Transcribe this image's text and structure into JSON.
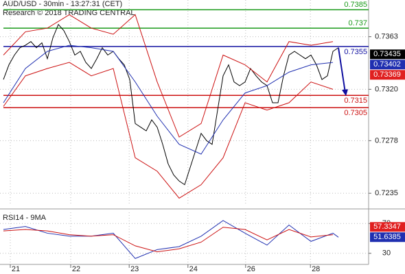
{
  "chart_data": [
    {
      "type": "line",
      "title": "AUD/USD - 30min - 13:27:31 (CET)",
      "subtitle": "Research © 2018 TRADING CENTRAL",
      "xlim": [
        0,
        66.5
      ],
      "ylim": [
        0.7225,
        0.7393
      ],
      "yticks": [
        0.7363,
        {
          "value": 0.732,
          "label": "0.7320"
        },
        0.7278,
        0.7235
      ],
      "grid": true,
      "series": [
        {
          "color": "#000000",
          "x": [
            0,
            1,
            2,
            3,
            4,
            5,
            6,
            7,
            8,
            9,
            10,
            11,
            12,
            13,
            14,
            15,
            16,
            17,
            18,
            19,
            20,
            21,
            22,
            23,
            24,
            25,
            26,
            27,
            28,
            29,
            30,
            31,
            32,
            33,
            34,
            35,
            36,
            37,
            38,
            39,
            40,
            41,
            42,
            43,
            44,
            45,
            46,
            47,
            48,
            49,
            50,
            51,
            52,
            53,
            54,
            55,
            56,
            57,
            58,
            59,
            60,
            61
          ],
          "values": [
            0.7328,
            0.734,
            0.7348,
            0.7354,
            0.7356,
            0.7359,
            0.7354,
            0.7358,
            0.7345,
            0.7362,
            0.7373,
            0.7368,
            0.7359,
            0.7348,
            0.7351,
            0.7342,
            0.7337,
            0.7345,
            0.7354,
            0.7348,
            0.7351,
            0.7345,
            0.734,
            0.7328,
            0.7292,
            0.7289,
            0.7286,
            0.7295,
            0.7289,
            0.7275,
            0.7259,
            0.725,
            0.7245,
            0.7242,
            0.7256,
            0.727,
            0.7284,
            0.7278,
            0.7275,
            0.7303,
            0.7331,
            0.734,
            0.7326,
            0.7323,
            0.7326,
            0.7337,
            0.7331,
            0.7326,
            0.7323,
            0.7309,
            0.7309,
            0.7331,
            0.7348,
            0.7351,
            0.7348,
            0.7345,
            0.7348,
            0.734,
            0.7328,
            0.7331,
            0.7351,
            0.7354
          ]
        },
        {
          "color": "#1f2fb0",
          "x": [
            0,
            4,
            8,
            12,
            16,
            20,
            24,
            28,
            32,
            36,
            40,
            44,
            48,
            52,
            56,
            60
          ],
          "values": [
            0.7309,
            0.7337,
            0.7351,
            0.7356,
            0.7354,
            0.7351,
            0.7326,
            0.7298,
            0.7275,
            0.7267,
            0.7295,
            0.7317,
            0.7323,
            0.7334,
            0.734,
            0.7342
          ]
        },
        {
          "color": "#cc1010",
          "x": [
            0,
            4,
            8,
            12,
            16,
            20,
            24,
            28,
            32,
            36,
            40,
            44,
            48,
            52,
            56,
            60
          ],
          "values": [
            0.7348,
            0.7367,
            0.737,
            0.7381,
            0.737,
            0.7365,
            0.7381,
            0.7326,
            0.7281,
            0.7292,
            0.7348,
            0.734,
            0.7326,
            0.7359,
            0.7356,
            0.7359
          ]
        },
        {
          "color": "#cc1010",
          "x": [
            0,
            4,
            8,
            12,
            16,
            20,
            24,
            28,
            32,
            36,
            40,
            44,
            48,
            52,
            56,
            60
          ],
          "values": [
            0.7306,
            0.7331,
            0.7337,
            0.7342,
            0.7331,
            0.7337,
            0.7264,
            0.7253,
            0.7231,
            0.7242,
            0.7264,
            0.7309,
            0.7303,
            0.7309,
            0.7326,
            0.732
          ]
        }
      ],
      "levels": [
        0.7385,
        0.737,
        0.7355,
        0.7315,
        0.7305
      ],
      "level_colors": [
        "#1a9a1a",
        "#1a9a1a",
        "#1010a0",
        "#cc1010",
        "#cc1010"
      ],
      "tags": [
        0.73435,
        0.73402,
        0.73369
      ],
      "tag_colors": [
        "#000000",
        "#1f2fb0",
        "#e02020"
      ]
    },
    {
      "type": "line",
      "title": "RSI14 - 9MA",
      "xlim": [
        0,
        66.5
      ],
      "ylim": [
        16,
        85
      ],
      "yticks": [
        70,
        30
      ],
      "grid": true,
      "xticks": [
        {
          "value": 1.25,
          "label": "21"
        },
        {
          "value": 12.25,
          "label": "22"
        },
        {
          "value": 22.9,
          "label": "23"
        },
        {
          "value": 33.6,
          "label": "24"
        },
        {
          "value": 44.1,
          "label": "26"
        },
        {
          "value": 55.9,
          "label": "28"
        }
      ],
      "series": [
        {
          "color": "#1f2fb0",
          "x": [
            0,
            4,
            8,
            12,
            16,
            20,
            24,
            28,
            32,
            36,
            40,
            44,
            48,
            52,
            56,
            60,
            61
          ],
          "values": [
            62,
            66,
            57,
            53,
            53,
            57,
            23,
            35,
            39,
            53,
            74,
            57,
            41,
            68,
            46,
            57,
            51.6
          ]
        },
        {
          "color": "#cc1010",
          "x": [
            0,
            4,
            8,
            12,
            16,
            20,
            24,
            28,
            32,
            36,
            40,
            44,
            48,
            52,
            56,
            60
          ],
          "values": [
            60,
            62,
            60,
            55,
            53,
            55,
            40,
            32,
            36,
            45,
            65,
            62,
            48,
            62,
            52,
            55
          ]
        }
      ],
      "tags": [
        57.3347,
        51.6385
      ],
      "tag_colors": [
        "#e02020",
        "#1f2fb0"
      ]
    }
  ]
}
